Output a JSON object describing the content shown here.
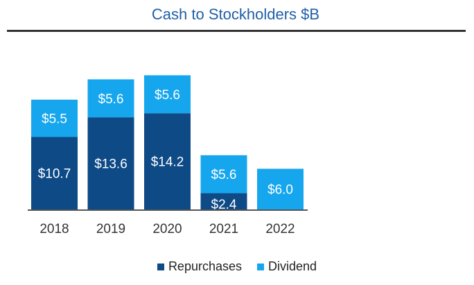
{
  "chart_data": {
    "type": "bar",
    "stacked": true,
    "title": "Cash to Stockholders $B",
    "categories": [
      "2018",
      "2019",
      "2020",
      "2021",
      "2022"
    ],
    "series": [
      {
        "name": "Repurchases",
        "color": "#0d4a86",
        "values": [
          10.7,
          13.6,
          14.2,
          2.4,
          0
        ],
        "labels": [
          "$10.7",
          "$13.6",
          "$14.2",
          "$2.4",
          ""
        ]
      },
      {
        "name": "Dividend",
        "color": "#16a6ee",
        "values": [
          5.5,
          5.6,
          5.6,
          5.6,
          6.0
        ],
        "labels": [
          "$5.5",
          "$5.6",
          "$5.6",
          "$5.6",
          "$6.0"
        ]
      }
    ],
    "xlabel": "",
    "ylabel": "",
    "ylim": [
      0,
      20
    ],
    "legend": "bottom-center",
    "grid": false
  }
}
